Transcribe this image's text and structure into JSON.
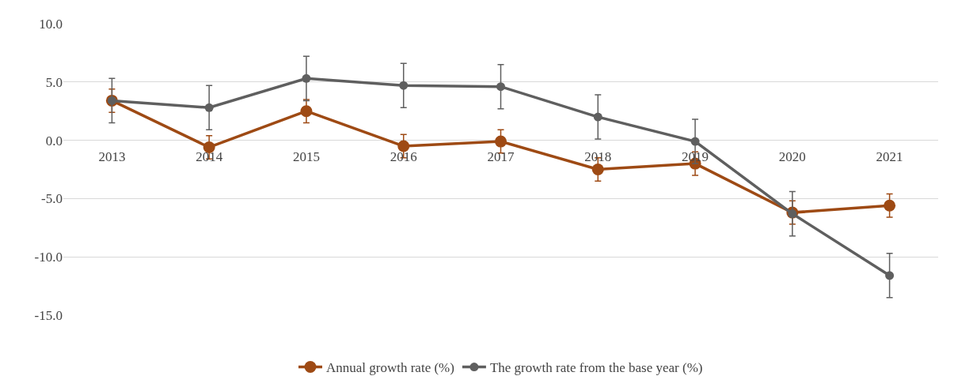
{
  "chart_data": {
    "type": "line",
    "categories": [
      "2013",
      "2014",
      "2015",
      "2016",
      "2017",
      "2018",
      "2019",
      "2020",
      "2021"
    ],
    "series": [
      {
        "name": "Annual growth rate (%)",
        "color": "#9e4a14",
        "values": [
          3.4,
          -0.6,
          2.5,
          -0.5,
          -0.1,
          -2.5,
          -2.0,
          -6.2,
          -5.6
        ],
        "errors": [
          1.0,
          1.0,
          1.0,
          1.0,
          1.0,
          1.0,
          1.0,
          1.0,
          1.0
        ]
      },
      {
        "name": "The growth rate from the base year (%)",
        "color": "#5f5f5f",
        "values": [
          3.4,
          2.8,
          5.3,
          4.7,
          4.6,
          2.0,
          -0.1,
          -6.3,
          -11.6
        ],
        "errors": [
          1.9,
          1.9,
          1.9,
          1.9,
          1.9,
          1.9,
          1.9,
          1.9,
          1.9
        ]
      }
    ],
    "ylim": [
      -15,
      10
    ],
    "yticks": [
      {
        "value": -15,
        "label": "-15.0"
      },
      {
        "value": -10,
        "label": "-10.0"
      },
      {
        "value": -5,
        "label": "-5.0"
      },
      {
        "value": 0,
        "label": "0.0"
      },
      {
        "value": 5,
        "label": "5.0"
      },
      {
        "value": 10,
        "label": "10.0"
      }
    ],
    "grid": "y",
    "legend": "bottom",
    "marker": "circle",
    "line_style": "solid"
  }
}
